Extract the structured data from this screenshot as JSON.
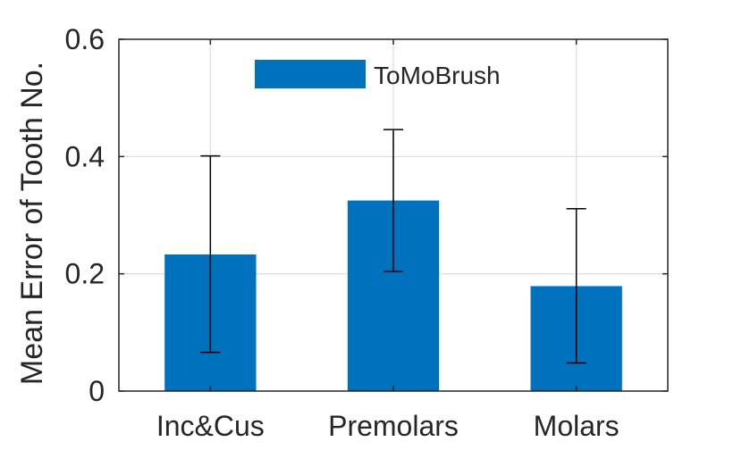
{
  "chart_data": {
    "type": "bar",
    "categories": [
      "Inc&Cus",
      "Premolars",
      "Molars"
    ],
    "series": [
      {
        "name": "ToMoBrush",
        "values": [
          0.233,
          0.325,
          0.179
        ],
        "error_lower": [
          0.066,
          0.204,
          0.048
        ],
        "error_upper": [
          0.401,
          0.446,
          0.311
        ],
        "color": "#0072BD"
      }
    ],
    "title": "",
    "xlabel": "",
    "ylabel": "Mean Error of Tooth No.",
    "ylim": [
      0,
      0.6
    ],
    "yticks": [
      0,
      0.2,
      0.4,
      0.6
    ],
    "ytick_labels": [
      "0",
      "0.2",
      "0.4",
      "0.6"
    ],
    "grid": true,
    "legend_position": "top-center"
  }
}
